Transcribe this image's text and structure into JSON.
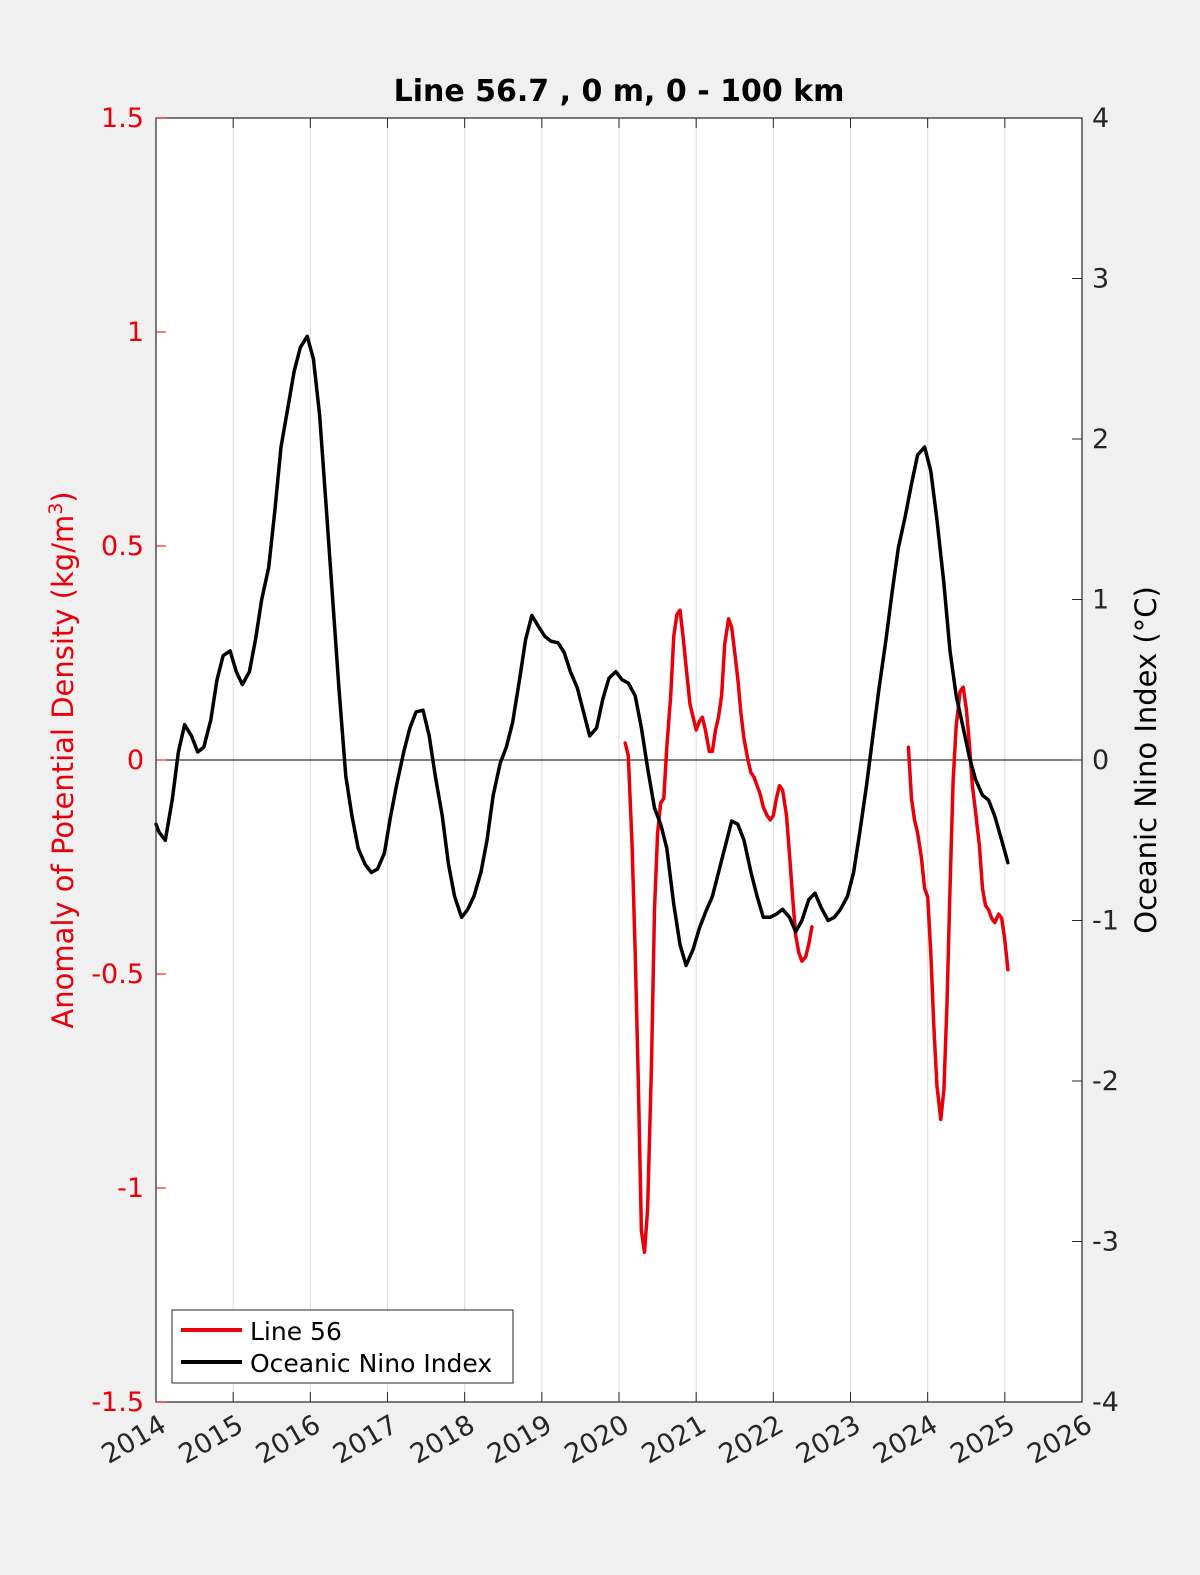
{
  "chart_data": {
    "type": "line",
    "title": "Line 56.7 , 0 m, 0 - 100 km",
    "xlabel": "",
    "ylabel_left": "Anomaly of Potential Density (kg/m",
    "ylabel_left_sup": "3",
    "ylabel_left_close": ")",
    "ylabel_right": "Oceanic Nino Index (°C)",
    "xlim": [
      2014,
      2026
    ],
    "ylim_left": [
      -1.5,
      1.5
    ],
    "ylim_right": [
      -4,
      4
    ],
    "x_ticks": [
      "2014",
      "2015",
      "2016",
      "2017",
      "2018",
      "2019",
      "2020",
      "2021",
      "2022",
      "2023",
      "2024",
      "2025",
      "2026"
    ],
    "y_ticks_left": [
      "1.5",
      "1",
      "0.5",
      "0",
      "-0.5",
      "-1",
      "-1.5"
    ],
    "y_ticks_right": [
      "4",
      "3",
      "2",
      "1",
      "0",
      "-1",
      "-2",
      "-3",
      "-4"
    ],
    "grid": "vertical",
    "legend_location": "bottom-left",
    "colors": {
      "line56": "#e8000b",
      "oni": "#000000",
      "left_axis": "#e8000b",
      "right_axis": "#000000"
    },
    "series": [
      {
        "name": "Line 56",
        "axis": "left",
        "segments": [
          [
            [
              2020.08,
              0.04
            ],
            [
              2020.12,
              0.01
            ],
            [
              2020.17,
              -0.2
            ],
            [
              2020.21,
              -0.45
            ],
            [
              2020.25,
              -0.75
            ],
            [
              2020.29,
              -1.1
            ],
            [
              2020.33,
              -1.15
            ],
            [
              2020.37,
              -1.05
            ],
            [
              2020.42,
              -0.72
            ],
            [
              2020.46,
              -0.35
            ],
            [
              2020.5,
              -0.17
            ],
            [
              2020.54,
              -0.1
            ],
            [
              2020.58,
              -0.09
            ],
            [
              2020.62,
              0.03
            ],
            [
              2020.67,
              0.15
            ],
            [
              2020.71,
              0.29
            ],
            [
              2020.75,
              0.34
            ],
            [
              2020.79,
              0.35
            ],
            [
              2020.83,
              0.29
            ],
            [
              2020.88,
              0.2
            ],
            [
              2020.92,
              0.13
            ],
            [
              2020.96,
              0.1
            ],
            [
              2021.0,
              0.07
            ],
            [
              2021.04,
              0.09
            ],
            [
              2021.08,
              0.1
            ],
            [
              2021.12,
              0.07
            ],
            [
              2021.17,
              0.02
            ],
            [
              2021.21,
              0.02
            ],
            [
              2021.25,
              0.07
            ],
            [
              2021.29,
              0.1
            ],
            [
              2021.33,
              0.15
            ],
            [
              2021.37,
              0.27
            ],
            [
              2021.42,
              0.33
            ],
            [
              2021.46,
              0.31
            ],
            [
              2021.5,
              0.25
            ],
            [
              2021.54,
              0.19
            ],
            [
              2021.58,
              0.11
            ],
            [
              2021.62,
              0.05
            ],
            [
              2021.67,
              0.0
            ],
            [
              2021.71,
              -0.03
            ],
            [
              2021.75,
              -0.04
            ],
            [
              2021.79,
              -0.06
            ],
            [
              2021.83,
              -0.08
            ],
            [
              2021.87,
              -0.11
            ],
            [
              2021.92,
              -0.13
            ],
            [
              2021.96,
              -0.14
            ],
            [
              2022.0,
              -0.13
            ],
            [
              2022.04,
              -0.09
            ],
            [
              2022.08,
              -0.06
            ],
            [
              2022.12,
              -0.07
            ],
            [
              2022.17,
              -0.13
            ],
            [
              2022.21,
              -0.22
            ],
            [
              2022.25,
              -0.32
            ],
            [
              2022.29,
              -0.41
            ],
            [
              2022.33,
              -0.45
            ],
            [
              2022.37,
              -0.47
            ],
            [
              2022.42,
              -0.46
            ],
            [
              2022.46,
              -0.43
            ],
            [
              2022.5,
              -0.39
            ]
          ],
          [
            [
              2023.75,
              0.03
            ],
            [
              2023.79,
              -0.09
            ],
            [
              2023.83,
              -0.14
            ],
            [
              2023.87,
              -0.17
            ],
            [
              2023.92,
              -0.23
            ],
            [
              2023.96,
              -0.3
            ],
            [
              2024.0,
              -0.32
            ],
            [
              2024.04,
              -0.45
            ],
            [
              2024.08,
              -0.62
            ],
            [
              2024.12,
              -0.76
            ],
            [
              2024.17,
              -0.84
            ],
            [
              2024.21,
              -0.77
            ],
            [
              2024.25,
              -0.57
            ],
            [
              2024.29,
              -0.3
            ],
            [
              2024.33,
              -0.05
            ],
            [
              2024.37,
              0.08
            ],
            [
              2024.42,
              0.16
            ],
            [
              2024.46,
              0.17
            ],
            [
              2024.5,
              0.12
            ],
            [
              2024.54,
              0.04
            ],
            [
              2024.58,
              -0.06
            ],
            [
              2024.62,
              -0.12
            ],
            [
              2024.67,
              -0.2
            ],
            [
              2024.71,
              -0.3
            ],
            [
              2024.75,
              -0.34
            ],
            [
              2024.79,
              -0.35
            ],
            [
              2024.83,
              -0.37
            ],
            [
              2024.87,
              -0.38
            ],
            [
              2024.92,
              -0.36
            ],
            [
              2024.96,
              -0.37
            ],
            [
              2025.0,
              -0.42
            ],
            [
              2025.04,
              -0.49
            ]
          ]
        ]
      },
      {
        "name": "Oceanic Nino Index",
        "axis": "right",
        "segments": [
          [
            [
              2014.0,
              -0.4
            ],
            [
              2014.04,
              -0.45
            ],
            [
              2014.12,
              -0.5
            ],
            [
              2014.21,
              -0.25
            ],
            [
              2014.29,
              0.05
            ],
            [
              2014.37,
              0.22
            ],
            [
              2014.46,
              0.15
            ],
            [
              2014.54,
              0.05
            ],
            [
              2014.62,
              0.08
            ],
            [
              2014.71,
              0.25
            ],
            [
              2014.79,
              0.5
            ],
            [
              2014.87,
              0.65
            ],
            [
              2014.96,
              0.68
            ],
            [
              2015.04,
              0.55
            ],
            [
              2015.12,
              0.47
            ],
            [
              2015.21,
              0.55
            ],
            [
              2015.29,
              0.75
            ],
            [
              2015.37,
              1.0
            ],
            [
              2015.46,
              1.2
            ],
            [
              2015.54,
              1.55
            ],
            [
              2015.62,
              1.95
            ],
            [
              2015.71,
              2.2
            ],
            [
              2015.79,
              2.42
            ],
            [
              2015.87,
              2.57
            ],
            [
              2015.96,
              2.64
            ],
            [
              2016.04,
              2.5
            ],
            [
              2016.12,
              2.15
            ],
            [
              2016.21,
              1.55
            ],
            [
              2016.29,
              1.0
            ],
            [
              2016.37,
              0.45
            ],
            [
              2016.46,
              -0.1
            ],
            [
              2016.54,
              -0.35
            ],
            [
              2016.62,
              -0.55
            ],
            [
              2016.71,
              -0.65
            ],
            [
              2016.79,
              -0.7
            ],
            [
              2016.87,
              -0.68
            ],
            [
              2016.96,
              -0.58
            ],
            [
              2017.04,
              -0.35
            ],
            [
              2017.12,
              -0.15
            ],
            [
              2017.21,
              0.05
            ],
            [
              2017.29,
              0.2
            ],
            [
              2017.37,
              0.3
            ],
            [
              2017.46,
              0.31
            ],
            [
              2017.54,
              0.15
            ],
            [
              2017.62,
              -0.1
            ],
            [
              2017.71,
              -0.35
            ],
            [
              2017.79,
              -0.65
            ],
            [
              2017.87,
              -0.85
            ],
            [
              2017.96,
              -0.98
            ],
            [
              2018.04,
              -0.93
            ],
            [
              2018.12,
              -0.85
            ],
            [
              2018.21,
              -0.7
            ],
            [
              2018.29,
              -0.5
            ],
            [
              2018.37,
              -0.22
            ],
            [
              2018.46,
              -0.02
            ],
            [
              2018.54,
              0.08
            ],
            [
              2018.62,
              0.23
            ],
            [
              2018.71,
              0.5
            ],
            [
              2018.79,
              0.75
            ],
            [
              2018.87,
              0.9
            ],
            [
              2018.96,
              0.83
            ],
            [
              2019.04,
              0.77
            ],
            [
              2019.12,
              0.74
            ],
            [
              2019.21,
              0.73
            ],
            [
              2019.29,
              0.67
            ],
            [
              2019.37,
              0.55
            ],
            [
              2019.46,
              0.45
            ],
            [
              2019.54,
              0.3
            ],
            [
              2019.62,
              0.15
            ],
            [
              2019.71,
              0.2
            ],
            [
              2019.79,
              0.38
            ],
            [
              2019.87,
              0.51
            ],
            [
              2019.96,
              0.55
            ],
            [
              2020.04,
              0.5
            ],
            [
              2020.12,
              0.48
            ],
            [
              2020.21,
              0.4
            ],
            [
              2020.29,
              0.2
            ],
            [
              2020.37,
              -0.05
            ],
            [
              2020.46,
              -0.3
            ],
            [
              2020.54,
              -0.4
            ],
            [
              2020.62,
              -0.55
            ],
            [
              2020.71,
              -0.9
            ],
            [
              2020.79,
              -1.15
            ],
            [
              2020.87,
              -1.28
            ],
            [
              2020.96,
              -1.18
            ],
            [
              2021.04,
              -1.05
            ],
            [
              2021.12,
              -0.95
            ],
            [
              2021.21,
              -0.85
            ],
            [
              2021.29,
              -0.7
            ],
            [
              2021.37,
              -0.55
            ],
            [
              2021.46,
              -0.38
            ],
            [
              2021.54,
              -0.4
            ],
            [
              2021.62,
              -0.5
            ],
            [
              2021.71,
              -0.7
            ],
            [
              2021.79,
              -0.85
            ],
            [
              2021.87,
              -0.98
            ],
            [
              2021.96,
              -0.98
            ],
            [
              2022.04,
              -0.96
            ],
            [
              2022.12,
              -0.93
            ],
            [
              2022.21,
              -0.98
            ],
            [
              2022.29,
              -1.07
            ],
            [
              2022.37,
              -1.0
            ],
            [
              2022.46,
              -0.87
            ],
            [
              2022.54,
              -0.83
            ],
            [
              2022.62,
              -0.92
            ],
            [
              2022.71,
              -1.0
            ],
            [
              2022.79,
              -0.98
            ],
            [
              2022.87,
              -0.93
            ],
            [
              2022.96,
              -0.85
            ],
            [
              2023.04,
              -0.7
            ],
            [
              2023.12,
              -0.45
            ],
            [
              2023.21,
              -0.15
            ],
            [
              2023.29,
              0.15
            ],
            [
              2023.37,
              0.45
            ],
            [
              2023.46,
              0.75
            ],
            [
              2023.54,
              1.05
            ],
            [
              2023.62,
              1.32
            ],
            [
              2023.71,
              1.52
            ],
            [
              2023.79,
              1.72
            ],
            [
              2023.87,
              1.9
            ],
            [
              2023.96,
              1.95
            ],
            [
              2024.04,
              1.8
            ],
            [
              2024.12,
              1.5
            ],
            [
              2024.21,
              1.1
            ],
            [
              2024.29,
              0.68
            ],
            [
              2024.37,
              0.4
            ],
            [
              2024.46,
              0.2
            ],
            [
              2024.54,
              0.02
            ],
            [
              2024.62,
              -0.12
            ],
            [
              2024.71,
              -0.22
            ],
            [
              2024.79,
              -0.25
            ],
            [
              2024.87,
              -0.35
            ],
            [
              2024.96,
              -0.5
            ],
            [
              2025.04,
              -0.64
            ]
          ]
        ]
      }
    ],
    "legend": [
      "Line 56",
      "Oceanic Nino Index"
    ]
  }
}
